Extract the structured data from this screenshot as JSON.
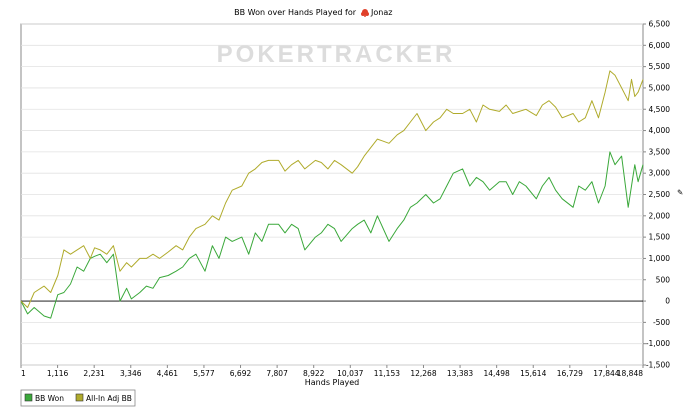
{
  "chart_data": {
    "type": "line",
    "title": "BB Won over Hands Played for",
    "player": "Jonaz",
    "watermark": "POKERTRACKER",
    "xlabel": "Hands Played",
    "ylabel": "",
    "x_ticks": [
      "1",
      "1,116",
      "2,231",
      "3,346",
      "4,461",
      "5,577",
      "6,692",
      "7,807",
      "8,922",
      "10,037",
      "11,153",
      "12,268",
      "13,383",
      "14,498",
      "15,614",
      "16,729",
      "17,844",
      "18,848"
    ],
    "y_ticks": [
      "-1,500",
      "-1,000",
      "-500",
      "0",
      "500",
      "1,000",
      "1,500",
      "2,000",
      "2,500",
      "3,000",
      "3,500",
      "4,000",
      "4,500",
      "5,000",
      "5,500",
      "6,000",
      "6,500"
    ],
    "xlim": [
      1,
      18848
    ],
    "ylim": [
      -1500,
      6500
    ],
    "grid": "horizontal",
    "legend_position": "bottom-left",
    "series": [
      {
        "name": "BB Won",
        "color": "#3aa83a",
        "x": [
          1,
          200,
          400,
          700,
          900,
          1116,
          1300,
          1500,
          1700,
          1900,
          2100,
          2231,
          2400,
          2600,
          2800,
          3000,
          3200,
          3346,
          3600,
          3800,
          4000,
          4200,
          4461,
          4700,
          4900,
          5100,
          5300,
          5577,
          5800,
          6000,
          6200,
          6400,
          6692,
          6900,
          7100,
          7300,
          7500,
          7807,
          8000,
          8200,
          8400,
          8600,
          8922,
          9100,
          9300,
          9500,
          9700,
          10037,
          10200,
          10400,
          10600,
          10800,
          11153,
          11400,
          11600,
          11800,
          12000,
          12268,
          12500,
          12700,
          12900,
          13100,
          13383,
          13600,
          13800,
          14000,
          14200,
          14498,
          14700,
          14900,
          15100,
          15300,
          15614,
          15800,
          16000,
          16200,
          16400,
          16729,
          16900,
          17100,
          17300,
          17500,
          17700,
          17844,
          18000,
          18200,
          18400,
          18500,
          18600,
          18700,
          18848
        ],
        "y": [
          0,
          -300,
          -150,
          -350,
          -400,
          150,
          200,
          400,
          800,
          700,
          1000,
          1050,
          1100,
          900,
          1100,
          0,
          300,
          50,
          200,
          350,
          300,
          550,
          600,
          700,
          800,
          1000,
          1100,
          700,
          1300,
          1000,
          1500,
          1400,
          1500,
          1100,
          1600,
          1400,
          1800,
          1800,
          1600,
          1800,
          1700,
          1200,
          1500,
          1600,
          1800,
          1700,
          1400,
          1700,
          1800,
          1900,
          1600,
          2000,
          1400,
          1700,
          1900,
          2200,
          2300,
          2500,
          2300,
          2400,
          2700,
          3000,
          3100,
          2700,
          2900,
          2800,
          2600,
          2800,
          2800,
          2500,
          2800,
          2700,
          2400,
          2700,
          2900,
          2600,
          2400,
          2200,
          2700,
          2600,
          2800,
          2300,
          2700,
          3500,
          3200,
          3400,
          2200,
          2700,
          3200,
          2800,
          3200
        ]
      },
      {
        "name": "All-In Adj BB",
        "color": "#b0ab2c",
        "x": [
          1,
          200,
          400,
          700,
          900,
          1116,
          1300,
          1500,
          1700,
          1900,
          2100,
          2231,
          2400,
          2600,
          2800,
          3000,
          3200,
          3346,
          3600,
          3800,
          4000,
          4200,
          4461,
          4700,
          4900,
          5100,
          5300,
          5577,
          5800,
          6000,
          6200,
          6400,
          6692,
          6900,
          7100,
          7300,
          7500,
          7807,
          8000,
          8200,
          8400,
          8600,
          8922,
          9100,
          9300,
          9500,
          9700,
          10037,
          10200,
          10400,
          10600,
          10800,
          11153,
          11400,
          11600,
          11800,
          12000,
          12268,
          12500,
          12700,
          12900,
          13100,
          13383,
          13600,
          13800,
          14000,
          14200,
          14498,
          14700,
          14900,
          15100,
          15300,
          15614,
          15800,
          16000,
          16200,
          16400,
          16729,
          16900,
          17100,
          17300,
          17500,
          17700,
          17844,
          18000,
          18200,
          18400,
          18500,
          18600,
          18700,
          18848
        ],
        "y": [
          0,
          -150,
          200,
          350,
          200,
          600,
          1200,
          1100,
          1200,
          1300,
          1000,
          1250,
          1200,
          1100,
          1300,
          700,
          900,
          800,
          1000,
          1000,
          1100,
          1000,
          1150,
          1300,
          1200,
          1500,
          1700,
          1800,
          2000,
          1900,
          2300,
          2600,
          2700,
          3000,
          3100,
          3250,
          3300,
          3300,
          3050,
          3200,
          3300,
          3100,
          3300,
          3250,
          3100,
          3300,
          3200,
          3000,
          3150,
          3400,
          3600,
          3800,
          3700,
          3900,
          4000,
          4200,
          4400,
          4000,
          4200,
          4300,
          4500,
          4400,
          4400,
          4500,
          4200,
          4600,
          4500,
          4450,
          4600,
          4400,
          4450,
          4500,
          4350,
          4600,
          4700,
          4550,
          4300,
          4400,
          4200,
          4300,
          4700,
          4300,
          4900,
          5400,
          5300,
          5000,
          4700,
          5200,
          4800,
          4900,
          5200
        ]
      }
    ]
  }
}
